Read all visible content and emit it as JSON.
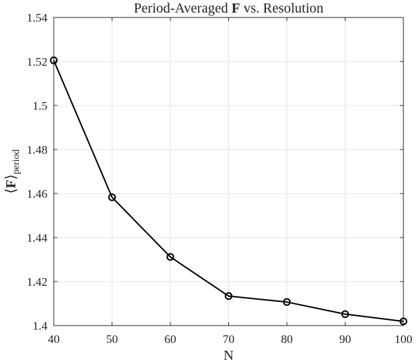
{
  "chart_data": {
    "type": "line",
    "title": {
      "prefix": "Period-Averaged ",
      "bold": "F",
      "suffix": " vs. Resolution"
    },
    "xlabel": "N",
    "ylabel": {
      "open": "⟨",
      "bold": "F",
      "close": "⟩",
      "subscript": "period"
    },
    "xlim": [
      40,
      100
    ],
    "ylim": [
      1.4,
      1.54
    ],
    "xticks": [
      40,
      50,
      60,
      70,
      80,
      90,
      100
    ],
    "yticks": [
      1.4,
      1.42,
      1.44,
      1.46,
      1.48,
      1.5,
      1.52,
      1.54
    ],
    "xtick_labels": [
      "40",
      "50",
      "60",
      "70",
      "80",
      "90",
      "100"
    ],
    "ytick_labels": [
      "1.4",
      "1.42",
      "1.44",
      "1.46",
      "1.48",
      "1.5",
      "1.52",
      "1.54"
    ],
    "grid": true,
    "box": true,
    "series": [
      {
        "x": [
          40,
          50,
          60,
          70,
          80,
          90,
          100
        ],
        "y": [
          1.5205,
          1.4583,
          1.4312,
          1.4134,
          1.4107,
          1.4052,
          1.4019
        ],
        "color": "#000000",
        "marker": "circle"
      }
    ]
  }
}
